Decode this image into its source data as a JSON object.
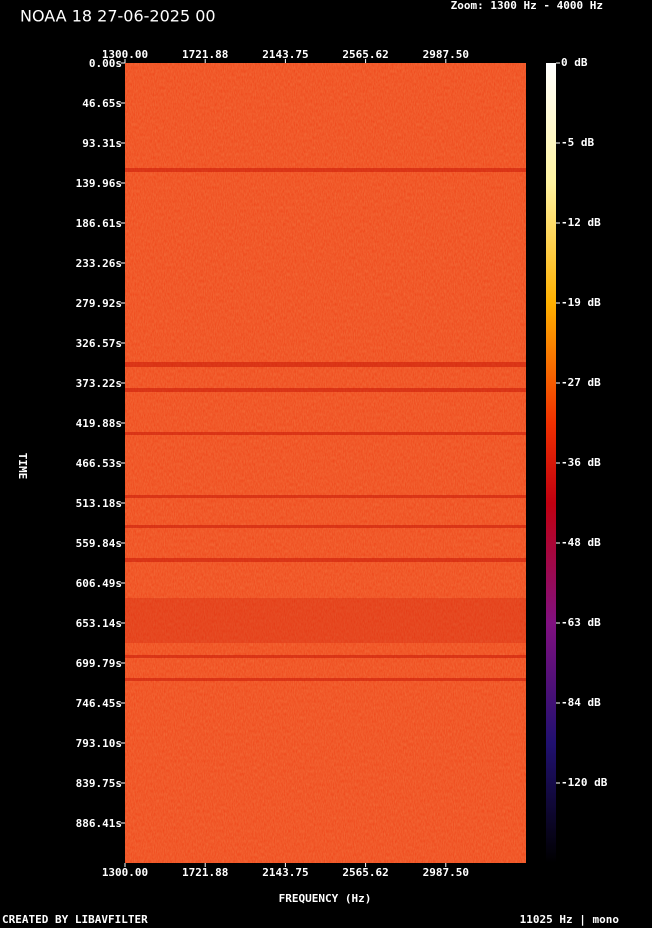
{
  "chart_data": {
    "type": "spectrogram",
    "title": "NOAA 18 27-06-2025 00",
    "subtitle": "Zoom: 1300 Hz - 4000 Hz",
    "xlabel": "FREQUENCY (Hz)",
    "ylabel": "TIME",
    "footer_left": "CREATED BY LIBAVFILTER",
    "footer_right": "11025 Hz | mono",
    "xlim": [
      1300,
      3409.38
    ],
    "xticks": [
      {
        "value": 1300,
        "label": "1300.00"
      },
      {
        "value": 1721.88,
        "label": "1721.88"
      },
      {
        "value": 2143.75,
        "label": "2143.75"
      },
      {
        "value": 2565.62,
        "label": "2565.62"
      },
      {
        "value": 2987.5,
        "label": "2987.50"
      }
    ],
    "ylim": [
      0,
      933.06
    ],
    "yticks": [
      {
        "value": 0,
        "label": "0.00s"
      },
      {
        "value": 46.65,
        "label": "46.65s"
      },
      {
        "value": 93.31,
        "label": "93.31s"
      },
      {
        "value": 139.96,
        "label": "139.96s"
      },
      {
        "value": 186.61,
        "label": "186.61s"
      },
      {
        "value": 233.26,
        "label": "233.26s"
      },
      {
        "value": 279.92,
        "label": "279.92s"
      },
      {
        "value": 326.57,
        "label": "326.57s"
      },
      {
        "value": 373.22,
        "label": "373.22s"
      },
      {
        "value": 419.88,
        "label": "419.88s"
      },
      {
        "value": 466.53,
        "label": "466.53s"
      },
      {
        "value": 513.18,
        "label": "513.18s"
      },
      {
        "value": 559.84,
        "label": "559.84s"
      },
      {
        "value": 606.49,
        "label": "606.49s"
      },
      {
        "value": 653.14,
        "label": "653.14s"
      },
      {
        "value": 699.79,
        "label": "699.79s"
      },
      {
        "value": 746.45,
        "label": "746.45s"
      },
      {
        "value": 793.1,
        "label": "793.10s"
      },
      {
        "value": 839.75,
        "label": "839.75s"
      },
      {
        "value": 886.41,
        "label": "886.41s"
      }
    ],
    "colorbar_ticks": [
      {
        "value": 0,
        "label": "0 dB"
      },
      {
        "value": -5,
        "label": "-5 dB"
      },
      {
        "value": -12,
        "label": "-12 dB"
      },
      {
        "value": -19,
        "label": "-19 dB"
      },
      {
        "value": -27,
        "label": "-27 dB"
      },
      {
        "value": -36,
        "label": "-36 dB"
      },
      {
        "value": -48,
        "label": "-48 dB"
      },
      {
        "value": -63,
        "label": "-63 dB"
      },
      {
        "value": -84,
        "label": "-84 dB"
      },
      {
        "value": -120,
        "label": "-120 dB"
      }
    ]
  }
}
